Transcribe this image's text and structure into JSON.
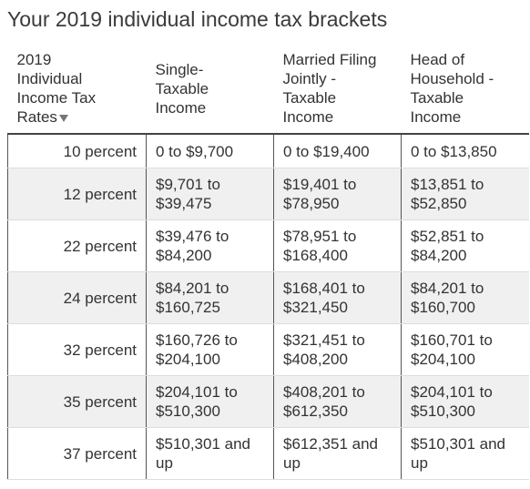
{
  "header": {
    "title": "Your 2019 individual income tax brackets"
  },
  "table": {
    "columns": [
      "2019 Individual Income Tax Rates",
      "Single-Taxable Income",
      "Married Filing Jointly - Taxable Income",
      "Head of Household - Taxable Income"
    ],
    "rows": [
      [
        "10 percent",
        "0 to $9,700",
        "0 to $19,400",
        "0 to $13,850"
      ],
      [
        "12 percent",
        "$9,701 to $39,475",
        "$19,401 to $78,950",
        "$13,851 to $52,850"
      ],
      [
        "22 percent",
        "$39,476 to $84,200",
        "$78,951 to $168,400",
        "$52,851 to $84,200"
      ],
      [
        "24 percent",
        "$84,201 to $160,725",
        "$168,401 to $321,450",
        "$84,201 to $160,700"
      ],
      [
        "32 percent",
        "$160,726 to $204,100",
        "$321,451 to $408,200",
        "$160,701 to $204,100"
      ],
      [
        "35 percent",
        "$204,101 to $510,300",
        "$408,201 to $612,350",
        "$204,101 to $510,300"
      ],
      [
        "37 percent",
        "$510,301 and up",
        "$612,351 and up",
        "$510,301 and up"
      ]
    ]
  }
}
